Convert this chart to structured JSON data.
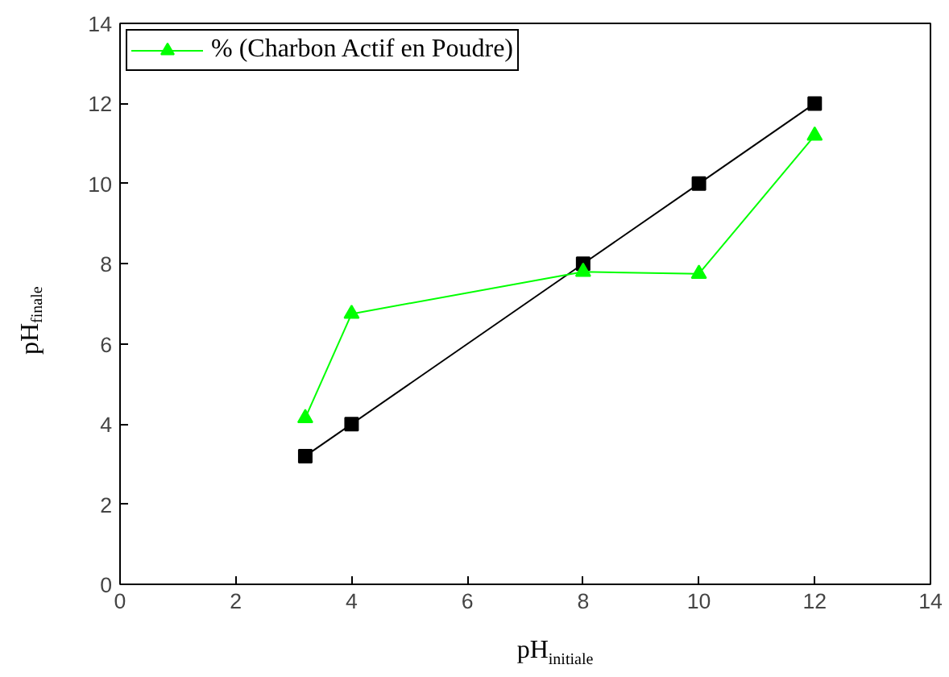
{
  "chart_data": {
    "type": "line",
    "xlabel": "pH$_{initiale}$",
    "ylabel": "pH$_{finale}$",
    "x": [
      3.2,
      4,
      8,
      10,
      12
    ],
    "series": [
      {
        "color": "#000000",
        "marker": "square",
        "values": [
          3.2,
          4,
          8,
          10,
          12
        ]
      },
      {
        "name": "% (Charbon Actif en Poudre)",
        "color": "#00ff00",
        "marker": "triangle",
        "values": [
          4.15,
          6.75,
          7.8,
          7.75,
          11.2
        ]
      }
    ],
    "xlim": [
      0,
      14
    ],
    "ylim": [
      0,
      14
    ],
    "xticks": [
      0,
      2,
      4,
      6,
      8,
      10,
      12,
      14
    ],
    "yticks": [
      0,
      2,
      4,
      6,
      8,
      10,
      12,
      14
    ],
    "grid": false,
    "legend": "top left",
    "line_style": "solid"
  }
}
